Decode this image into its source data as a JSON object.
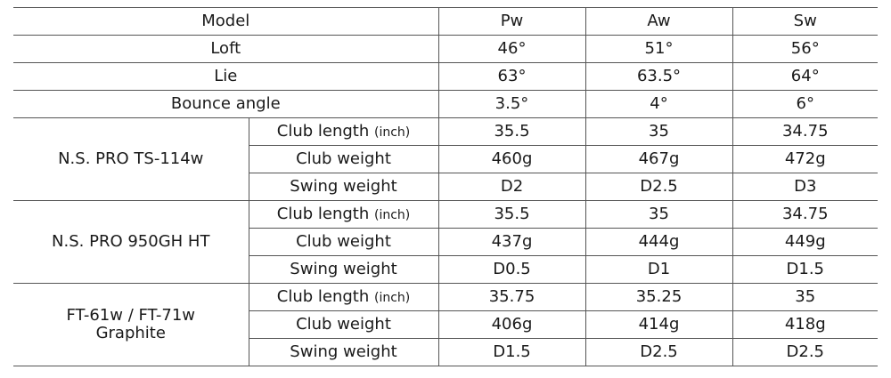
{
  "header": {
    "label": "Model",
    "columns": [
      "Pw",
      "Aw",
      "Sw"
    ]
  },
  "specs": [
    {
      "label": "Loft",
      "values": [
        "46°",
        "51°",
        "56°"
      ]
    },
    {
      "label": "Lie",
      "values": [
        "63°",
        "63.5°",
        "64°"
      ]
    },
    {
      "label": "Bounce angle",
      "values": [
        "3.5°",
        "4°",
        "6°"
      ]
    }
  ],
  "length_unit": "(inch)",
  "shafts": [
    {
      "name": "N.S. PRO TS-114w",
      "name2": "",
      "rows": [
        {
          "label": "Club length",
          "values": [
            "35.5",
            "35",
            "34.75"
          ]
        },
        {
          "label": "Club weight",
          "values": [
            "460g",
            "467g",
            "472g"
          ]
        },
        {
          "label": "Swing weight",
          "values": [
            "D2",
            "D2.5",
            "D3"
          ]
        }
      ]
    },
    {
      "name": "N.S. PRO 950GH HT",
      "name2": "",
      "rows": [
        {
          "label": "Club length",
          "values": [
            "35.5",
            "35",
            "34.75"
          ]
        },
        {
          "label": "Club weight",
          "values": [
            "437g",
            "444g",
            "449g"
          ]
        },
        {
          "label": "Swing weight",
          "values": [
            "D0.5",
            "D1",
            "D1.5"
          ]
        }
      ]
    },
    {
      "name": "FT-61w / FT-71w",
      "name2": "Graphite",
      "rows": [
        {
          "label": "Club length",
          "values": [
            "35.75",
            "35.25",
            "35"
          ]
        },
        {
          "label": "Club weight",
          "values": [
            "406g",
            "414g",
            "418g"
          ]
        },
        {
          "label": "Swing weight",
          "values": [
            "D1.5",
            "D2.5",
            "D2.5"
          ]
        }
      ]
    }
  ]
}
